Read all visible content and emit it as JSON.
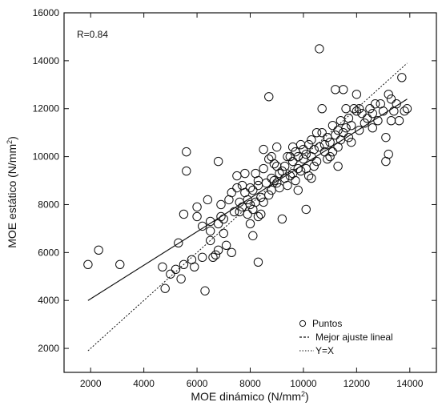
{
  "chart_data": {
    "type": "scatter",
    "xlabel": "MOE dinámico (N/mm²)",
    "ylabel": "MOE estático (N/mm²)",
    "xlim": [
      1000,
      15000
    ],
    "ylim": [
      1000,
      16000
    ],
    "x_ticks": [
      2000,
      4000,
      6000,
      8000,
      10000,
      12000,
      14000
    ],
    "y_ticks": [
      2000,
      4000,
      6000,
      8000,
      10000,
      12000,
      14000,
      16000
    ],
    "annotation": "R=0.84",
    "legend_position": "bottom-right",
    "legend": [
      {
        "marker": "o",
        "label": "Puntos"
      },
      {
        "marker": "---",
        "label": "Mejor ajuste lineal"
      },
      {
        "marker": "......",
        "label": "Y=X"
      }
    ],
    "fit_line": {
      "x": [
        1900,
        13900
      ],
      "y": [
        4000,
        12400
      ]
    },
    "identity_line": {
      "x": [
        1900,
        13900
      ],
      "y": [
        1900,
        13900
      ]
    },
    "points": [
      [
        1900,
        5500
      ],
      [
        2300,
        6100
      ],
      [
        3100,
        5500
      ],
      [
        4700,
        5400
      ],
      [
        4800,
        4500
      ],
      [
        5000,
        5100
      ],
      [
        5200,
        5300
      ],
      [
        5300,
        6400
      ],
      [
        5400,
        4900
      ],
      [
        5500,
        5500
      ],
      [
        5500,
        7600
      ],
      [
        5600,
        10200
      ],
      [
        5600,
        9400
      ],
      [
        5800,
        5700
      ],
      [
        5900,
        5400
      ],
      [
        6000,
        7900
      ],
      [
        6200,
        5800
      ],
      [
        6300,
        4400
      ],
      [
        6400,
        8200
      ],
      [
        6500,
        7300
      ],
      [
        6500,
        6900
      ],
      [
        6500,
        6500
      ],
      [
        6600,
        5800
      ],
      [
        6700,
        5900
      ],
      [
        6800,
        7200
      ],
      [
        6800,
        6100
      ],
      [
        6800,
        9800
      ],
      [
        6900,
        7500
      ],
      [
        6900,
        8000
      ],
      [
        7000,
        7400
      ],
      [
        7000,
        6800
      ],
      [
        7100,
        6300
      ],
      [
        7200,
        8200
      ],
      [
        7300,
        8500
      ],
      [
        7300,
        6000
      ],
      [
        7400,
        7700
      ],
      [
        7500,
        9200
      ],
      [
        7500,
        8700
      ],
      [
        7600,
        7700
      ],
      [
        7700,
        7900
      ],
      [
        7800,
        8500
      ],
      [
        7800,
        9300
      ],
      [
        7900,
        8200
      ],
      [
        7900,
        7600
      ],
      [
        8000,
        8700
      ],
      [
        8000,
        7200
      ],
      [
        8000,
        8000
      ],
      [
        8100,
        8600
      ],
      [
        8100,
        7800
      ],
      [
        8100,
        6700
      ],
      [
        8200,
        9300
      ],
      [
        8200,
        8100
      ],
      [
        8300,
        9000
      ],
      [
        8300,
        7500
      ],
      [
        8300,
        8800
      ],
      [
        8400,
        8300
      ],
      [
        8400,
        7600
      ],
      [
        8500,
        9500
      ],
      [
        8500,
        8100
      ],
      [
        8600,
        8900
      ],
      [
        8700,
        8400
      ],
      [
        8700,
        9900
      ],
      [
        8700,
        12500
      ],
      [
        8800,
        10000
      ],
      [
        8800,
        9100
      ],
      [
        8800,
        8600
      ],
      [
        8900,
        9700
      ],
      [
        8900,
        9000
      ],
      [
        9000,
        8900
      ],
      [
        9000,
        9600
      ],
      [
        9000,
        10400
      ],
      [
        9100,
        8700
      ],
      [
        9100,
        9300
      ],
      [
        9200,
        9400
      ],
      [
        9200,
        7400
      ],
      [
        9300,
        9600
      ],
      [
        9300,
        9100
      ],
      [
        9400,
        10000
      ],
      [
        9400,
        8800
      ],
      [
        9500,
        9200
      ],
      [
        9600,
        9300
      ],
      [
        9600,
        10400
      ],
      [
        9600,
        9800
      ],
      [
        9700,
        9000
      ],
      [
        9700,
        10200
      ],
      [
        9800,
        9500
      ],
      [
        9800,
        10000
      ],
      [
        9900,
        10500
      ],
      [
        9900,
        9400
      ],
      [
        10000,
        10300
      ],
      [
        10000,
        9900
      ],
      [
        10100,
        10100
      ],
      [
        10100,
        9500
      ],
      [
        10200,
        10500
      ],
      [
        10200,
        9200
      ],
      [
        10300,
        10000
      ],
      [
        10300,
        10700
      ],
      [
        10400,
        9600
      ],
      [
        10400,
        10300
      ],
      [
        10500,
        11000
      ],
      [
        10500,
        9800
      ],
      [
        10600,
        10400
      ],
      [
        10600,
        14500
      ],
      [
        10700,
        11000
      ],
      [
        10700,
        12000
      ],
      [
        10800,
        10200
      ],
      [
        10900,
        10800
      ],
      [
        10900,
        9900
      ],
      [
        11000,
        10600
      ],
      [
        11000,
        10000
      ],
      [
        11100,
        11300
      ],
      [
        11100,
        10200
      ],
      [
        11200,
        12800
      ],
      [
        11200,
        10900
      ],
      [
        11300,
        11100
      ],
      [
        11300,
        10400
      ],
      [
        11400,
        11500
      ],
      [
        11400,
        10700
      ],
      [
        11500,
        12800
      ],
      [
        11500,
        11000
      ],
      [
        11600,
        12000
      ],
      [
        11600,
        11200
      ],
      [
        11700,
        10800
      ],
      [
        11700,
        11600
      ],
      [
        11800,
        11300
      ],
      [
        11800,
        10600
      ],
      [
        11900,
        12000
      ],
      [
        12000,
        11900
      ],
      [
        12100,
        11100
      ],
      [
        12100,
        12000
      ],
      [
        12200,
        11800
      ],
      [
        12300,
        11400
      ],
      [
        12400,
        11600
      ],
      [
        12500,
        12000
      ],
      [
        12600,
        11800
      ],
      [
        12700,
        12200
      ],
      [
        12800,
        11500
      ],
      [
        12900,
        12200
      ],
      [
        13000,
        11900
      ],
      [
        13100,
        10800
      ],
      [
        13100,
        9800
      ],
      [
        13200,
        12600
      ],
      [
        13200,
        10100
      ],
      [
        13300,
        12400
      ],
      [
        13300,
        11500
      ],
      [
        13400,
        11900
      ],
      [
        13500,
        12200
      ],
      [
        13600,
        11500
      ],
      [
        13700,
        13300
      ],
      [
        13800,
        11900
      ],
      [
        13900,
        12000
      ],
      [
        6200,
        7100
      ],
      [
        7700,
        8800
      ],
      [
        8500,
        10300
      ],
      [
        9500,
        10000
      ],
      [
        10800,
        10500
      ],
      [
        12000,
        12600
      ],
      [
        9800,
        8600
      ],
      [
        10100,
        7800
      ],
      [
        8300,
        5600
      ],
      [
        7600,
        8100
      ],
      [
        6000,
        7500
      ],
      [
        11300,
        9600
      ],
      [
        12600,
        11200
      ],
      [
        10300,
        9100
      ]
    ]
  }
}
